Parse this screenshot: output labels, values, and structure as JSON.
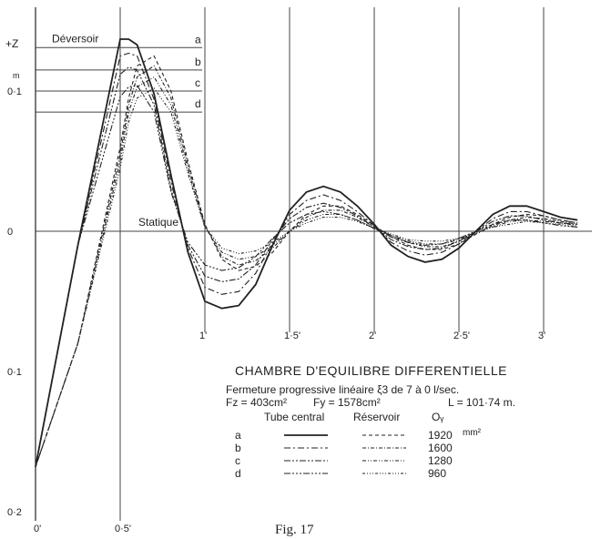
{
  "chart_data": {
    "type": "line",
    "title": "CHAMBRE D'EQUILIBRE DIFFERENTIELLE",
    "subtitle": "Fermeture progressive linéaire ξ3 de 7 à 0 l/sec.",
    "params": {
      "fz": "Fz = 403cm²",
      "fy": "Fy = 1578cm²",
      "length": "L = 101·74 m."
    },
    "figure_caption": "Fig. 17",
    "ylabel": "+Z",
    "y_unit": "m",
    "y_ticks": [
      "0·1",
      "0",
      "0·1",
      "0·2"
    ],
    "x_ticks": [
      "0'",
      "0·5'",
      "1'",
      "1·5'",
      "2'",
      "2·5'",
      "3'"
    ],
    "x": [
      0,
      0.25,
      0.5,
      0.55,
      0.6,
      0.7,
      0.8,
      0.9,
      1.0,
      1.1,
      1.2,
      1.3,
      1.4,
      1.5,
      1.6,
      1.7,
      1.8,
      1.9,
      2.0,
      2.1,
      2.2,
      2.3,
      2.4,
      2.5,
      2.6,
      2.7,
      2.8,
      2.9,
      3.0,
      3.1,
      3.2
    ],
    "series": [
      {
        "group": "Tube central",
        "case": "a",
        "style": "solid",
        "values": [
          -0.168,
          -0.01,
          0.137,
          0.137,
          0.133,
          0.098,
          0.04,
          -0.015,
          -0.05,
          -0.055,
          -0.053,
          -0.038,
          -0.01,
          0.015,
          0.028,
          0.032,
          0.028,
          0.018,
          0.005,
          -0.01,
          -0.018,
          -0.022,
          -0.02,
          -0.012,
          0.0,
          0.012,
          0.018,
          0.018,
          0.014,
          0.01,
          0.008
        ]
      },
      {
        "group": "Tube central",
        "case": "b",
        "style": "dash-dot",
        "values": [
          -0.168,
          -0.01,
          0.125,
          0.127,
          0.125,
          0.094,
          0.035,
          -0.012,
          -0.04,
          -0.045,
          -0.043,
          -0.03,
          -0.008,
          0.012,
          0.022,
          0.026,
          0.022,
          0.014,
          0.004,
          -0.008,
          -0.014,
          -0.017,
          -0.015,
          -0.009,
          0.0,
          0.009,
          0.014,
          0.014,
          0.011,
          0.008,
          0.006
        ]
      },
      {
        "group": "Tube central",
        "case": "c",
        "style": "dash-dot-dot",
        "values": [
          -0.168,
          -0.01,
          0.112,
          0.117,
          0.115,
          0.09,
          0.03,
          -0.01,
          -0.032,
          -0.036,
          -0.034,
          -0.024,
          -0.006,
          0.009,
          0.017,
          0.02,
          0.017,
          0.011,
          0.003,
          -0.006,
          -0.011,
          -0.013,
          -0.012,
          -0.007,
          0.0,
          0.007,
          0.011,
          0.011,
          0.008,
          0.006,
          0.005
        ]
      },
      {
        "group": "Tube central",
        "case": "d",
        "style": "dash-dot-dot-dot",
        "values": [
          -0.168,
          -0.01,
          0.096,
          0.103,
          0.104,
          0.085,
          0.028,
          -0.008,
          -0.024,
          -0.028,
          -0.026,
          -0.018,
          -0.005,
          0.006,
          0.012,
          0.014,
          0.012,
          0.008,
          0.002,
          -0.004,
          -0.008,
          -0.01,
          -0.009,
          -0.005,
          0.0,
          0.005,
          0.008,
          0.008,
          0.006,
          0.004,
          0.003
        ]
      },
      {
        "group": "Réservoir",
        "case": "a",
        "style": "dashed",
        "values": [
          -0.168,
          -0.08,
          0.06,
          0.095,
          0.118,
          0.125,
          0.1,
          0.05,
          0.005,
          -0.02,
          -0.028,
          -0.025,
          -0.015,
          0.0,
          0.012,
          0.018,
          0.018,
          0.012,
          0.004,
          -0.004,
          -0.01,
          -0.013,
          -0.013,
          -0.009,
          -0.002,
          0.005,
          0.01,
          0.012,
          0.011,
          0.008,
          0.006
        ]
      },
      {
        "group": "Réservoir",
        "case": "b",
        "style": "dashed-dot",
        "values": [
          -0.168,
          -0.08,
          0.055,
          0.09,
          0.11,
          0.118,
          0.095,
          0.047,
          0.004,
          -0.018,
          -0.024,
          -0.021,
          -0.012,
          0.0,
          0.01,
          0.015,
          0.015,
          0.01,
          0.003,
          -0.003,
          -0.008,
          -0.011,
          -0.011,
          -0.007,
          -0.002,
          0.004,
          0.008,
          0.01,
          0.009,
          0.007,
          0.005
        ]
      },
      {
        "group": "Réservoir",
        "case": "c",
        "style": "dashed-dot-dot",
        "values": [
          -0.168,
          -0.08,
          0.05,
          0.085,
          0.103,
          0.11,
          0.09,
          0.044,
          0.003,
          -0.015,
          -0.02,
          -0.018,
          -0.01,
          0.0,
          0.008,
          0.012,
          0.012,
          0.008,
          0.002,
          -0.003,
          -0.007,
          -0.009,
          -0.009,
          -0.006,
          -0.001,
          0.003,
          0.007,
          0.008,
          0.007,
          0.006,
          0.004
        ]
      },
      {
        "group": "Réservoir",
        "case": "d",
        "style": "dashed-dot-dot-dot",
        "values": [
          -0.168,
          -0.08,
          0.045,
          0.078,
          0.095,
          0.102,
          0.085,
          0.041,
          0.003,
          -0.012,
          -0.016,
          -0.014,
          -0.008,
          0.0,
          0.006,
          0.01,
          0.01,
          0.007,
          0.002,
          -0.002,
          -0.006,
          -0.007,
          -0.007,
          -0.005,
          -0.001,
          0.003,
          0.005,
          0.007,
          0.006,
          0.005,
          0.003
        ]
      }
    ],
    "reference_lines": [
      {
        "label": "Déversoir",
        "y": 0.131
      },
      {
        "label": "Statique",
        "y": 0
      }
    ],
    "level_lines": [
      {
        "label": "a",
        "y": 0.131
      },
      {
        "label": "b",
        "y": 0.115
      },
      {
        "label": "c",
        "y": 0.1
      },
      {
        "label": "d",
        "y": 0.085
      }
    ],
    "legend": {
      "headers": [
        "Tube central",
        "Réservoir",
        "Oᵧ"
      ],
      "unit": "mm²",
      "rows": [
        {
          "case": "a",
          "oy": "1920"
        },
        {
          "case": "b",
          "oy": "1600"
        },
        {
          "case": "c",
          "oy": "1280"
        },
        {
          "case": "d",
          "oy": "960"
        }
      ]
    },
    "xlim": [
      0,
      3.3
    ],
    "ylim": [
      -0.2,
      0.15
    ],
    "grid": "vertical"
  }
}
